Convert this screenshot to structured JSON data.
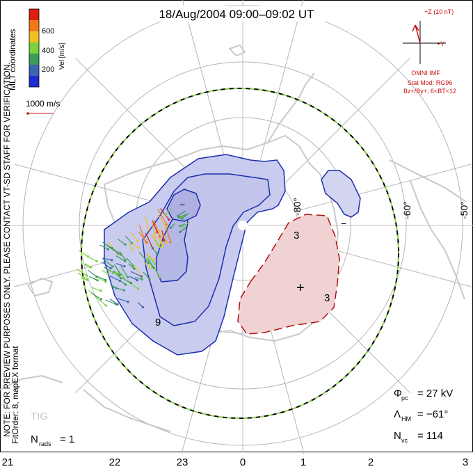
{
  "title": "18/Aug/2004 09:00–09:02 UT",
  "colorbar": {
    "label": "Vel [m/s]",
    "ticks": [
      "600",
      "400",
      "200"
    ],
    "colors": [
      "#dd1e10",
      "#f07818",
      "#f0c020",
      "#78d23c",
      "#3c9a5a",
      "#3c64b4",
      "#1e2ad2"
    ]
  },
  "coord_label": "MLT coordinates",
  "scale_label": "1000 m/s",
  "imf": {
    "axis_z": "+Z (10 nT)",
    "axis_y": "+Y",
    "label": "OMNI IMF",
    "model_line1": "Stat Mod: RG96",
    "model_line2": "Bz+/By+, 6<BT<12",
    "color": "#cc1111"
  },
  "side_note": "NOTE: FOR PREVIEW PURPOSES ONLY. PLEASE CONTACT VT-SD STAFF FOR VERIFICATION.",
  "fit_order": "FitOrder: 8, mapEX format",
  "latitude_labels": [
    "-80°",
    "-60°",
    "-50°"
  ],
  "contour_labels": {
    "neg": [
      "−",
      "9",
      "−"
    ],
    "pos": [
      "3",
      "+",
      "3"
    ]
  },
  "stats": {
    "phi_pc_sym": "Φ",
    "phi_pc_sub": "pc",
    "phi_pc_val": "= 27 kV",
    "lambda_sym": "Λ",
    "lambda_sub": "HM",
    "lambda_val": "= −61°",
    "nvc_sym": "N",
    "nvc_sub": "vc",
    "nvc_val": "= 114",
    "nrads_sym": "N",
    "nrads_sub": "rads",
    "nrads_val": "= 1"
  },
  "station": "TIG",
  "mlt_ticks": [
    "21",
    "22",
    "23",
    "0",
    "1",
    "2",
    "3"
  ],
  "colors": {
    "neg_contour": "#1a2fb0",
    "neg_fill": "#c9ccee",
    "pos_contour": "#b01010",
    "pos_fill": "#f0d2d2",
    "coast": "#c9c9c9",
    "grid": "#b5b5b5",
    "hmb_dash": "#8fd64a"
  }
}
